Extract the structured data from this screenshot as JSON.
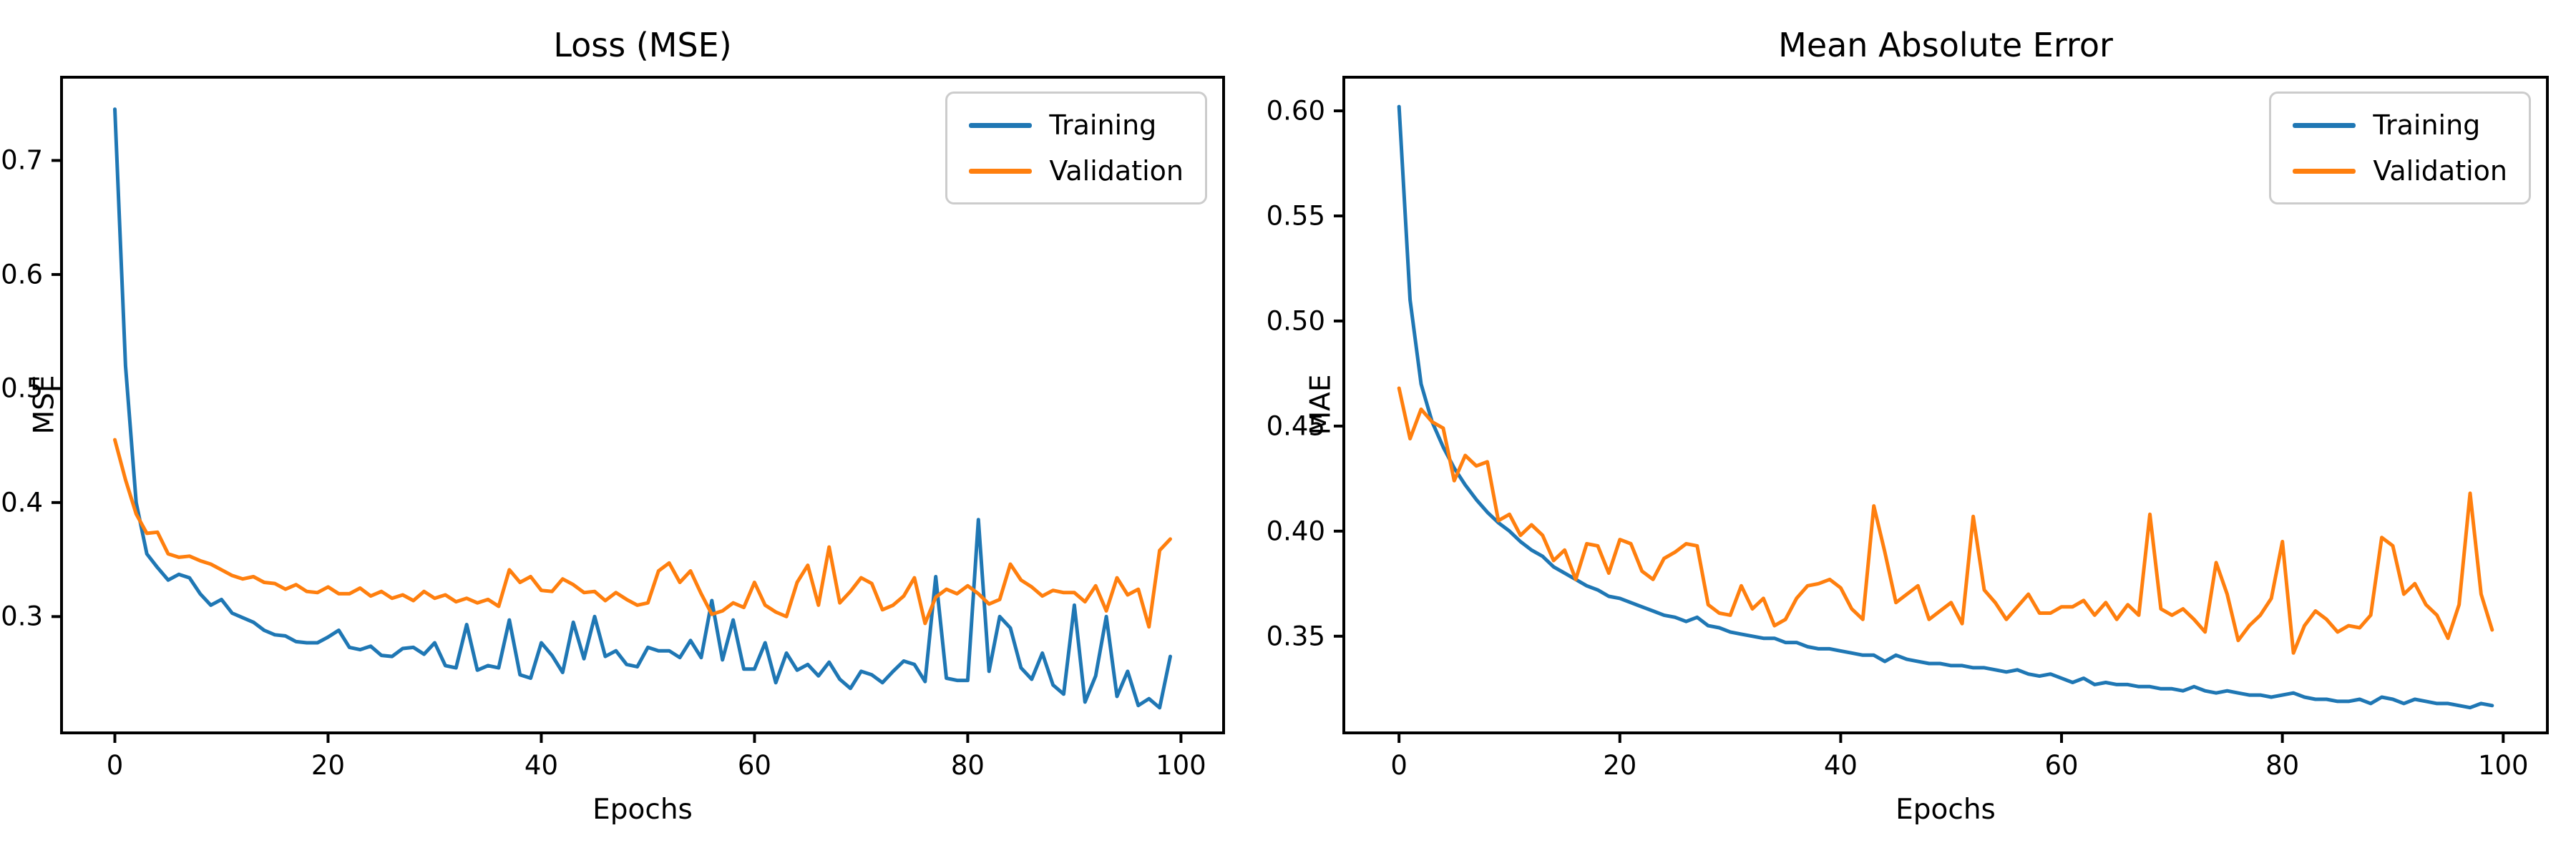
{
  "figure": {
    "background": "#ffffff"
  },
  "colors": {
    "training": "#1f77b4",
    "validation": "#ff7f0e",
    "spine": "#000000",
    "legend_border": "#cccccc"
  },
  "legend": {
    "position": "upper right",
    "items": [
      {
        "label": "Training",
        "color": "#1f77b4"
      },
      {
        "label": "Validation",
        "color": "#ff7f0e"
      }
    ]
  },
  "chart_data": [
    {
      "type": "line",
      "title": "Loss (MSE)",
      "xlabel": "Epochs",
      "ylabel": "MSE",
      "x_start": 0,
      "epochs": 100,
      "xlim": [
        -5,
        104
      ],
      "ylim": [
        0.198,
        0.773
      ],
      "xticks": [
        0,
        20,
        40,
        60,
        80,
        100
      ],
      "xtick_labels": [
        "0",
        "20",
        "40",
        "60",
        "80",
        "100"
      ],
      "yticks": [
        0.3,
        0.4,
        0.5,
        0.6,
        0.7
      ],
      "ytick_labels": [
        "0.3",
        "0.4",
        "0.5",
        "0.6",
        "0.7"
      ],
      "grid": false,
      "legend_position": "upper right",
      "series": [
        {
          "name": "Training",
          "color": "#1f77b4",
          "values": [
            0.745,
            0.52,
            0.4,
            0.355,
            0.343,
            0.332,
            0.337,
            0.334,
            0.32,
            0.31,
            0.315,
            0.303,
            0.299,
            0.295,
            0.288,
            0.284,
            0.283,
            0.278,
            0.277,
            0.277,
            0.282,
            0.288,
            0.273,
            0.271,
            0.274,
            0.266,
            0.265,
            0.272,
            0.273,
            0.267,
            0.277,
            0.257,
            0.255,
            0.293,
            0.253,
            0.257,
            0.255,
            0.297,
            0.249,
            0.246,
            0.277,
            0.266,
            0.251,
            0.295,
            0.263,
            0.3,
            0.265,
            0.27,
            0.258,
            0.256,
            0.273,
            0.27,
            0.27,
            0.264,
            0.279,
            0.264,
            0.314,
            0.262,
            0.297,
            0.254,
            0.254,
            0.277,
            0.242,
            0.268,
            0.253,
            0.258,
            0.248,
            0.26,
            0.245,
            0.237,
            0.252,
            0.249,
            0.242,
            0.252,
            0.261,
            0.258,
            0.243,
            0.335,
            0.246,
            0.244,
            0.244,
            0.385,
            0.252,
            0.3,
            0.29,
            0.255,
            0.245,
            0.268,
            0.24,
            0.232,
            0.31,
            0.225,
            0.248,
            0.3,
            0.23,
            0.252,
            0.222,
            0.228,
            0.22,
            0.265
          ]
        },
        {
          "name": "Validation",
          "color": "#ff7f0e",
          "values": [
            0.455,
            0.42,
            0.39,
            0.373,
            0.374,
            0.355,
            0.352,
            0.353,
            0.349,
            0.346,
            0.341,
            0.336,
            0.333,
            0.335,
            0.33,
            0.329,
            0.324,
            0.328,
            0.322,
            0.321,
            0.326,
            0.32,
            0.32,
            0.325,
            0.318,
            0.322,
            0.316,
            0.319,
            0.314,
            0.322,
            0.316,
            0.319,
            0.313,
            0.316,
            0.312,
            0.315,
            0.309,
            0.341,
            0.33,
            0.335,
            0.323,
            0.322,
            0.333,
            0.328,
            0.321,
            0.322,
            0.314,
            0.321,
            0.315,
            0.31,
            0.312,
            0.34,
            0.347,
            0.33,
            0.34,
            0.32,
            0.302,
            0.305,
            0.312,
            0.308,
            0.33,
            0.31,
            0.304,
            0.3,
            0.33,
            0.345,
            0.31,
            0.361,
            0.312,
            0.322,
            0.334,
            0.329,
            0.306,
            0.31,
            0.318,
            0.334,
            0.294,
            0.317,
            0.324,
            0.32,
            0.327,
            0.32,
            0.311,
            0.315,
            0.346,
            0.332,
            0.326,
            0.318,
            0.323,
            0.321,
            0.321,
            0.313,
            0.327,
            0.305,
            0.334,
            0.319,
            0.324,
            0.291,
            0.358,
            0.368
          ]
        }
      ]
    },
    {
      "type": "line",
      "title": "Mean Absolute Error",
      "xlabel": "Epochs",
      "ylabel": "MAE",
      "x_start": 0,
      "epochs": 100,
      "xlim": [
        -5,
        104
      ],
      "ylim": [
        0.304,
        0.616
      ],
      "xticks": [
        0,
        20,
        40,
        60,
        80,
        100
      ],
      "xtick_labels": [
        "0",
        "20",
        "40",
        "60",
        "80",
        "100"
      ],
      "yticks": [
        0.35,
        0.4,
        0.45,
        0.5,
        0.55,
        0.6
      ],
      "ytick_labels": [
        "0.35",
        "0.40",
        "0.45",
        "0.50",
        "0.55",
        "0.60"
      ],
      "grid": false,
      "legend_position": "upper right",
      "series": [
        {
          "name": "Training",
          "color": "#1f77b4",
          "values": [
            0.602,
            0.51,
            0.47,
            0.452,
            0.44,
            0.43,
            0.422,
            0.415,
            0.409,
            0.404,
            0.4,
            0.395,
            0.391,
            0.388,
            0.383,
            0.38,
            0.377,
            0.374,
            0.372,
            0.369,
            0.368,
            0.366,
            0.364,
            0.362,
            0.36,
            0.359,
            0.357,
            0.359,
            0.355,
            0.354,
            0.352,
            0.351,
            0.35,
            0.349,
            0.349,
            0.347,
            0.347,
            0.345,
            0.344,
            0.344,
            0.343,
            0.342,
            0.341,
            0.341,
            0.338,
            0.341,
            0.339,
            0.338,
            0.337,
            0.337,
            0.336,
            0.336,
            0.335,
            0.335,
            0.334,
            0.333,
            0.334,
            0.332,
            0.331,
            0.332,
            0.33,
            0.328,
            0.33,
            0.327,
            0.328,
            0.327,
            0.327,
            0.326,
            0.326,
            0.325,
            0.325,
            0.324,
            0.326,
            0.324,
            0.323,
            0.324,
            0.323,
            0.322,
            0.322,
            0.321,
            0.322,
            0.323,
            0.321,
            0.32,
            0.32,
            0.319,
            0.319,
            0.32,
            0.318,
            0.321,
            0.32,
            0.318,
            0.32,
            0.319,
            0.318,
            0.318,
            0.317,
            0.316,
            0.318,
            0.317
          ]
        },
        {
          "name": "Validation",
          "color": "#ff7f0e",
          "values": [
            0.468,
            0.444,
            0.458,
            0.452,
            0.449,
            0.424,
            0.436,
            0.431,
            0.433,
            0.405,
            0.408,
            0.398,
            0.403,
            0.398,
            0.386,
            0.391,
            0.377,
            0.394,
            0.393,
            0.38,
            0.396,
            0.394,
            0.381,
            0.377,
            0.387,
            0.39,
            0.394,
            0.393,
            0.365,
            0.361,
            0.36,
            0.374,
            0.363,
            0.368,
            0.355,
            0.358,
            0.368,
            0.374,
            0.375,
            0.377,
            0.373,
            0.363,
            0.358,
            0.412,
            0.39,
            0.366,
            0.37,
            0.374,
            0.358,
            0.362,
            0.366,
            0.356,
            0.407,
            0.372,
            0.366,
            0.358,
            0.364,
            0.37,
            0.361,
            0.361,
            0.364,
            0.364,
            0.367,
            0.36,
            0.366,
            0.358,
            0.365,
            0.36,
            0.408,
            0.363,
            0.36,
            0.363,
            0.358,
            0.352,
            0.385,
            0.37,
            0.348,
            0.355,
            0.36,
            0.368,
            0.395,
            0.342,
            0.355,
            0.362,
            0.358,
            0.352,
            0.355,
            0.354,
            0.36,
            0.397,
            0.393,
            0.37,
            0.375,
            0.365,
            0.36,
            0.349,
            0.365,
            0.418,
            0.37,
            0.353
          ]
        }
      ]
    }
  ]
}
